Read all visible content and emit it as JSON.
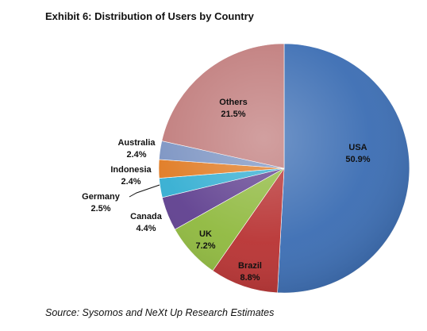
{
  "title": "Exhibit 6: Distribution of Users by Country",
  "source": "Source: Sysomos and NeXt Up Research Estimates",
  "chart_data": {
    "type": "pie",
    "title": "Exhibit 6: Distribution of Users by Country",
    "categories": [
      "USA",
      "Brazil",
      "UK",
      "Canada",
      "Germany",
      "Indonesia",
      "Australia",
      "Others"
    ],
    "values": [
      50.9,
      8.8,
      7.2,
      4.4,
      2.5,
      2.4,
      2.4,
      21.5
    ],
    "value_labels": [
      "50.9%",
      "8.8%",
      "7.2%",
      "4.4%",
      "2.5%",
      "2.4%",
      "2.4%",
      "21.5%"
    ],
    "colors": [
      "#3b6db3",
      "#b83232",
      "#8fb93e",
      "#5f3f8f",
      "#33aed2",
      "#e07a22",
      "#7b93c2",
      "#c07b7b"
    ],
    "legend": "none",
    "start": "top, clockwise"
  }
}
